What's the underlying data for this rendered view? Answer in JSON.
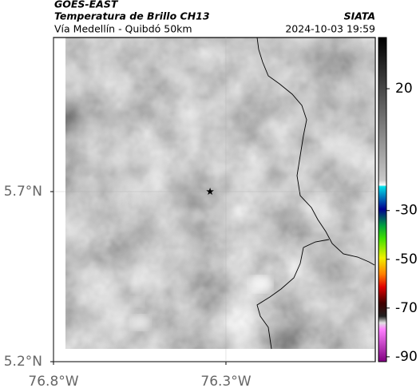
{
  "header": {
    "satellite": "GOES-EAST",
    "product": "Temperatura de Brillo CH13",
    "source": "SIATA",
    "region": "Vía Medellín - Quibdó 50km",
    "datetime": "2024-10-03 19:59"
  },
  "map": {
    "xlim": [
      -76.8,
      -75.867
    ],
    "ylim": [
      5.2,
      6.153
    ],
    "xticks": [
      {
        "value": -76.8,
        "label": "76.8°W"
      },
      {
        "value": -76.3,
        "label": "76.3°W"
      }
    ],
    "yticks": [
      {
        "value": 5.2,
        "label": "5.2°N"
      },
      {
        "value": 5.7,
        "label": "5.7°N"
      }
    ],
    "marker": {
      "lon": -76.346,
      "lat": 5.7
    },
    "grid": true
  },
  "colorbar": {
    "lim": [
      41,
      -92
    ],
    "ticks": [
      20,
      -30,
      -50,
      -70,
      -90
    ]
  }
}
